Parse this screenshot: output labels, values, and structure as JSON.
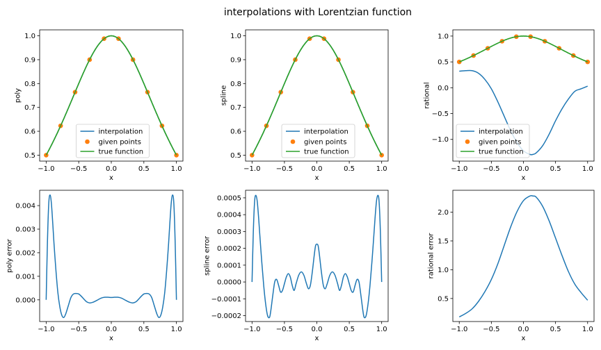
{
  "figure": {
    "suptitle": "interpolations with Lorentzian function"
  },
  "colors": {
    "interpolation": "#1f77b4",
    "given": "#ff7f0e",
    "true": "#2ca02c"
  },
  "chart_data": [
    {
      "id": "poly",
      "type": "line",
      "ylabel": "poly",
      "xlabel": "x",
      "xlim": [
        -1.1,
        1.1
      ],
      "ylim": [
        0.475,
        1.025
      ],
      "xticks": [
        -1.0,
        -0.5,
        0.0,
        0.5,
        1.0
      ],
      "xticklabels": [
        "−1.0",
        "−0.5",
        "0.0",
        "0.5",
        "1.0"
      ],
      "yticks": [
        0.5,
        0.6,
        0.7,
        0.8,
        0.9,
        1.0
      ],
      "yticklabels": [
        "0.5",
        "0.6",
        "0.7",
        "0.8",
        "0.9",
        "1.0"
      ],
      "legend": {
        "placement": "lower center",
        "entries": [
          "interpolation",
          "given points",
          "true function"
        ]
      },
      "given_points": {
        "x": [
          -1.0,
          -0.778,
          -0.556,
          -0.333,
          -0.111,
          0.111,
          0.333,
          0.556,
          0.778,
          1.0
        ],
        "y": [
          0.5,
          0.623,
          0.764,
          0.9,
          0.988,
          0.988,
          0.9,
          0.764,
          0.623,
          0.5
        ]
      }
    },
    {
      "id": "spline",
      "type": "line",
      "ylabel": "spline",
      "xlabel": "x",
      "xlim": [
        -1.1,
        1.1
      ],
      "ylim": [
        0.475,
        1.025
      ],
      "xticks": [
        -1.0,
        -0.5,
        0.0,
        0.5,
        1.0
      ],
      "xticklabels": [
        "−1.0",
        "−0.5",
        "0.0",
        "0.5",
        "1.0"
      ],
      "yticks": [
        0.5,
        0.6,
        0.7,
        0.8,
        0.9,
        1.0
      ],
      "yticklabels": [
        "0.5",
        "0.6",
        "0.7",
        "0.8",
        "0.9",
        "1.0"
      ],
      "legend": {
        "placement": "lower center",
        "entries": [
          "interpolation",
          "given points",
          "true function"
        ]
      },
      "given_points": {
        "x": [
          -1.0,
          -0.778,
          -0.556,
          -0.333,
          -0.111,
          0.111,
          0.333,
          0.556,
          0.778,
          1.0
        ],
        "y": [
          0.5,
          0.623,
          0.764,
          0.9,
          0.988,
          0.988,
          0.9,
          0.764,
          0.623,
          0.5
        ]
      }
    },
    {
      "id": "rational",
      "type": "line",
      "ylabel": "rational",
      "xlabel": "x",
      "xlim": [
        -1.1,
        1.1
      ],
      "ylim": [
        -1.42,
        1.12
      ],
      "xticks": [
        -1.0,
        -0.5,
        0.0,
        0.5,
        1.0
      ],
      "xticklabels": [
        "−1.0",
        "−0.5",
        "0.0",
        "0.5",
        "1.0"
      ],
      "yticks": [
        -1.0,
        -0.5,
        0.0,
        0.5,
        1.0
      ],
      "yticklabels": [
        "−1.0",
        "−0.5",
        "0.0",
        "0.5",
        "1.0"
      ],
      "legend": {
        "placement": "lower left",
        "entries": [
          "interpolation",
          "given points",
          "true function"
        ]
      },
      "given_points": {
        "x": [
          -1.0,
          -0.778,
          -0.556,
          -0.333,
          -0.111,
          0.111,
          0.333,
          0.556,
          0.778,
          1.0
        ],
        "y": [
          0.5,
          0.623,
          0.764,
          0.9,
          0.988,
          0.988,
          0.9,
          0.764,
          0.623,
          0.5
        ]
      },
      "interpolation_curve": {
        "x": [
          -1.0,
          -0.9,
          -0.8,
          -0.7,
          -0.6,
          -0.5,
          -0.4,
          -0.3,
          -0.2,
          -0.1,
          0.0,
          0.1,
          0.15,
          0.2,
          0.3,
          0.4,
          0.5,
          0.6,
          0.7,
          0.8,
          0.9,
          1.0
        ],
        "y": [
          0.32,
          0.33,
          0.33,
          0.28,
          0.16,
          -0.02,
          -0.27,
          -0.55,
          -0.83,
          -1.06,
          -1.22,
          -1.29,
          -1.29,
          -1.26,
          -1.12,
          -0.9,
          -0.64,
          -0.41,
          -0.22,
          -0.07,
          -0.02,
          0.03
        ]
      }
    },
    {
      "id": "poly_error",
      "type": "line",
      "ylabel": "poly error",
      "xlabel": "x",
      "xlim": [
        -1.1,
        1.1
      ],
      "ylim": [
        -0.00092,
        0.00465
      ],
      "xticks": [
        -1.0,
        -0.5,
        0.0,
        0.5,
        1.0
      ],
      "xticklabels": [
        "−1.0",
        "−0.5",
        "0.0",
        "0.5",
        "1.0"
      ],
      "yticks": [
        0.0,
        0.001,
        0.002,
        0.003,
        0.004
      ],
      "yticklabels": [
        "0.000",
        "0.001",
        "0.002",
        "0.003",
        "0.004"
      ],
      "series": [
        {
          "x": [
            -1.0,
            -0.98,
            -0.96,
            -0.94,
            -0.92,
            -0.9,
            -0.88,
            -0.85,
            -0.82,
            -0.79,
            -0.76,
            -0.73,
            -0.7,
            -0.66,
            -0.62,
            -0.58,
            -0.54,
            -0.5,
            -0.46,
            -0.42,
            -0.38,
            -0.33,
            -0.28,
            -0.22,
            -0.16,
            -0.1,
            -0.05,
            0.0,
            0.05,
            0.1,
            0.16,
            0.22,
            0.28,
            0.33,
            0.38,
            0.42,
            0.46,
            0.5,
            0.54,
            0.58,
            0.62,
            0.66,
            0.7,
            0.73,
            0.76,
            0.79,
            0.82,
            0.85,
            0.88,
            0.9,
            0.92,
            0.94,
            0.96,
            0.98,
            1.0
          ],
          "y": [
            0.0,
            0.0025,
            0.0041,
            0.00445,
            0.0041,
            0.0033,
            0.0024,
            0.00125,
            0.0003,
            -0.0003,
            -0.00065,
            -0.00075,
            -0.0006,
            -0.00025,
            0.0001,
            0.00025,
            0.00027,
            0.00025,
            0.00015,
            3e-05,
            -8e-05,
            -0.00013,
            -0.0001,
            -2e-05,
            7e-05,
            0.00011,
            0.00011,
            0.0001,
            0.00011,
            0.00011,
            7e-05,
            -2e-05,
            -0.0001,
            -0.00013,
            -8e-05,
            3e-05,
            0.00015,
            0.00025,
            0.00027,
            0.00025,
            0.0001,
            -0.00025,
            -0.0006,
            -0.00075,
            -0.00065,
            -0.0003,
            0.0003,
            0.00125,
            0.0024,
            0.0033,
            0.0041,
            0.00445,
            0.0041,
            0.0025,
            0.0
          ]
        }
      ]
    },
    {
      "id": "spline_error",
      "type": "line",
      "ylabel": "spline error",
      "xlabel": "x",
      "xlim": [
        -1.1,
        1.1
      ],
      "ylim": [
        -0.000235,
        0.000545
      ],
      "xticks": [
        -1.0,
        -0.5,
        0.0,
        0.5,
        1.0
      ],
      "xticklabels": [
        "−1.0",
        "−0.5",
        "0.0",
        "0.5",
        "1.0"
      ],
      "yticks": [
        -0.0002,
        -0.0001,
        0.0,
        0.0001,
        0.0002,
        0.0003,
        0.0004,
        0.0005
      ],
      "yticklabels": [
        "−0.0002",
        "−0.0001",
        "0.0000",
        "0.0001",
        "0.0002",
        "0.0003",
        "0.0004",
        "0.0005"
      ],
      "series": [
        {
          "x": [
            -1.0,
            -0.98,
            -0.96,
            -0.94,
            -0.92,
            -0.9,
            -0.88,
            -0.85,
            -0.82,
            -0.79,
            -0.76,
            -0.73,
            -0.71,
            -0.68,
            -0.65,
            -0.62,
            -0.59,
            -0.56,
            -0.53,
            -0.5,
            -0.47,
            -0.44,
            -0.41,
            -0.38,
            -0.35,
            -0.32,
            -0.28,
            -0.24,
            -0.2,
            -0.16,
            -0.13,
            -0.1,
            -0.07,
            -0.04,
            -0.02,
            0.0,
            0.02,
            0.04,
            0.07,
            0.1,
            0.13,
            0.16,
            0.2,
            0.24,
            0.28,
            0.32,
            0.35,
            0.38,
            0.41,
            0.44,
            0.47,
            0.5,
            0.53,
            0.56,
            0.59,
            0.62,
            0.65,
            0.68,
            0.71,
            0.73,
            0.76,
            0.79,
            0.82,
            0.85,
            0.88,
            0.9,
            0.92,
            0.94,
            0.96,
            0.98,
            1.0
          ],
          "y": [
            0.0,
            0.0003,
            0.00048,
            0.000515,
            0.00048,
            0.00039,
            0.00028,
            0.00012,
            -2e-05,
            -0.00013,
            -0.0002,
            -0.00021,
            -0.00017,
            -8e-05,
            0.0,
            1.5e-05,
            -2e-05,
            -6e-05,
            -5e-05,
            -1e-05,
            3e-05,
            5e-05,
            3e-05,
            -2e-05,
            -5e-05,
            -1e-05,
            4e-05,
            6e-05,
            4e-05,
            -1e-05,
            -4e-05,
            -2e-05,
            6e-05,
            0.00016,
            0.000215,
            0.000225,
            0.000215,
            0.00016,
            6e-05,
            -2e-05,
            -4e-05,
            -1e-05,
            4e-05,
            6e-05,
            4e-05,
            -1e-05,
            -5e-05,
            -2e-05,
            3e-05,
            5e-05,
            3e-05,
            -1e-05,
            -5e-05,
            -6e-05,
            -2e-05,
            1.5e-05,
            0.0,
            -8e-05,
            -0.00017,
            -0.00021,
            -0.0002,
            -0.00013,
            -2e-05,
            0.00012,
            0.00028,
            0.00039,
            0.00048,
            0.000515,
            0.00048,
            0.0003,
            0.0
          ]
        }
      ]
    },
    {
      "id": "rational_error",
      "type": "line",
      "ylabel": "rational error",
      "xlabel": "x",
      "xlim": [
        -1.1,
        1.1
      ],
      "ylim": [
        0.1,
        2.38
      ],
      "xticks": [
        -1.0,
        -0.5,
        0.0,
        0.5,
        1.0
      ],
      "xticklabels": [
        "−1.0",
        "−0.5",
        "0.0",
        "0.5",
        "1.0"
      ],
      "yticks": [
        0.5,
        1.0,
        1.5,
        2.0
      ],
      "yticklabels": [
        "0.5",
        "1.0",
        "1.5",
        "2.0"
      ],
      "series": [
        {
          "x": [
            -1.0,
            -0.9,
            -0.8,
            -0.7,
            -0.6,
            -0.5,
            -0.4,
            -0.3,
            -0.2,
            -0.1,
            0.0,
            0.1,
            0.15,
            0.2,
            0.3,
            0.4,
            0.5,
            0.6,
            0.7,
            0.8,
            0.9,
            1.0
          ],
          "y": [
            0.18,
            0.24,
            0.32,
            0.45,
            0.62,
            0.83,
            1.1,
            1.42,
            1.74,
            2.01,
            2.2,
            2.28,
            2.28,
            2.26,
            2.1,
            1.85,
            1.55,
            1.25,
            0.97,
            0.75,
            0.6,
            0.47
          ]
        }
      ]
    }
  ]
}
